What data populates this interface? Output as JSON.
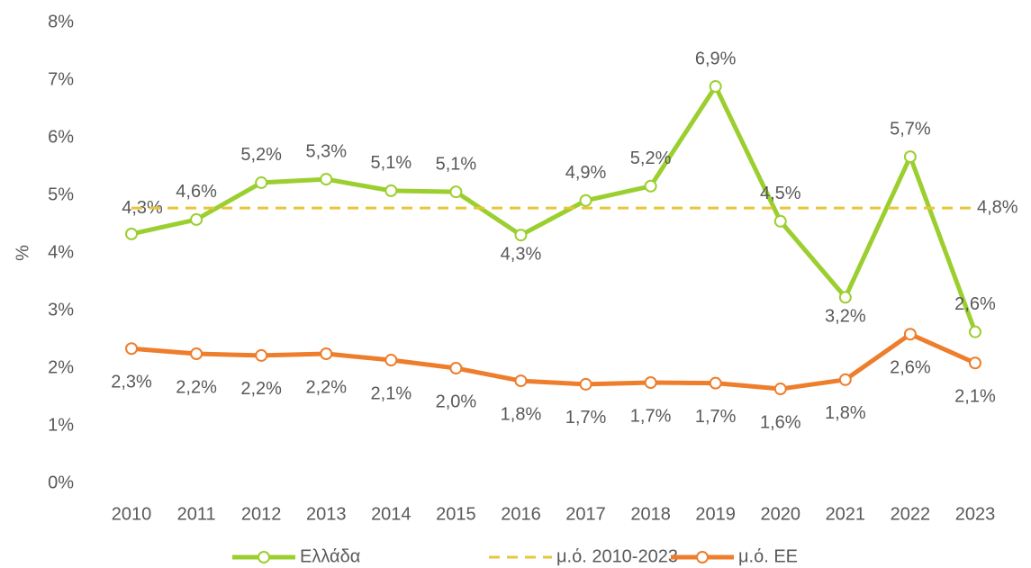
{
  "chart_data": {
    "type": "line",
    "ylabel": "%",
    "categories": [
      "2010",
      "2011",
      "2012",
      "2013",
      "2014",
      "2015",
      "2016",
      "2017",
      "2018",
      "2019",
      "2020",
      "2021",
      "2022",
      "2023"
    ],
    "series": [
      {
        "name": "Ελλάδα",
        "color": "#9bcf2f",
        "marker": true,
        "dashed": false,
        "values": [
          4.33,
          4.58,
          5.22,
          5.28,
          5.08,
          5.06,
          4.31,
          4.91,
          5.16,
          6.89,
          4.55,
          3.23,
          5.67,
          2.63
        ],
        "value_labels": [
          "4,3%",
          "4,6%",
          "5,2%",
          "5,3%",
          "5,1%",
          "5,1%",
          "4,3%",
          "4,9%",
          "5,2%",
          "6,9%",
          "4,5%",
          "3,2%",
          "5,7%",
          "2,6%"
        ]
      },
      {
        "name": "μ.ό. 2010-2023",
        "color": "#e8c53c",
        "marker": false,
        "dashed": true,
        "values": [
          4.78,
          4.78,
          4.78,
          4.78,
          4.78,
          4.78,
          4.78,
          4.78,
          4.78,
          4.78,
          4.78,
          4.78,
          4.78,
          4.78
        ],
        "value_labels": [
          null,
          null,
          null,
          null,
          null,
          null,
          null,
          null,
          null,
          null,
          null,
          null,
          null,
          "4,8%"
        ]
      },
      {
        "name": "μ.ό. ΕΕ",
        "color": "#ee7d2c",
        "marker": true,
        "dashed": false,
        "values": [
          2.34,
          2.25,
          2.22,
          2.25,
          2.14,
          2.0,
          1.78,
          1.72,
          1.75,
          1.74,
          1.64,
          1.8,
          2.59,
          2.09
        ],
        "value_labels": [
          "2,3%",
          "2,2%",
          "2,2%",
          "2,2%",
          "2,1%",
          "2,0%",
          "1,8%",
          "1,7%",
          "1,7%",
          "1,7%",
          "1,6%",
          "1,8%",
          "2,6%",
          "2,1%"
        ]
      }
    ],
    "ylim": [
      0,
      8
    ],
    "yticks": [
      {
        "value": 0,
        "label": "0%"
      },
      {
        "value": 1,
        "label": "1%"
      },
      {
        "value": 2,
        "label": "2%"
      },
      {
        "value": 3,
        "label": "3%"
      },
      {
        "value": 4,
        "label": "4%"
      },
      {
        "value": 5,
        "label": "5%"
      },
      {
        "value": 6,
        "label": "6%"
      },
      {
        "value": 7,
        "label": "7%"
      },
      {
        "value": 8,
        "label": "8%"
      }
    ],
    "grid": false,
    "legend": "bottom"
  }
}
